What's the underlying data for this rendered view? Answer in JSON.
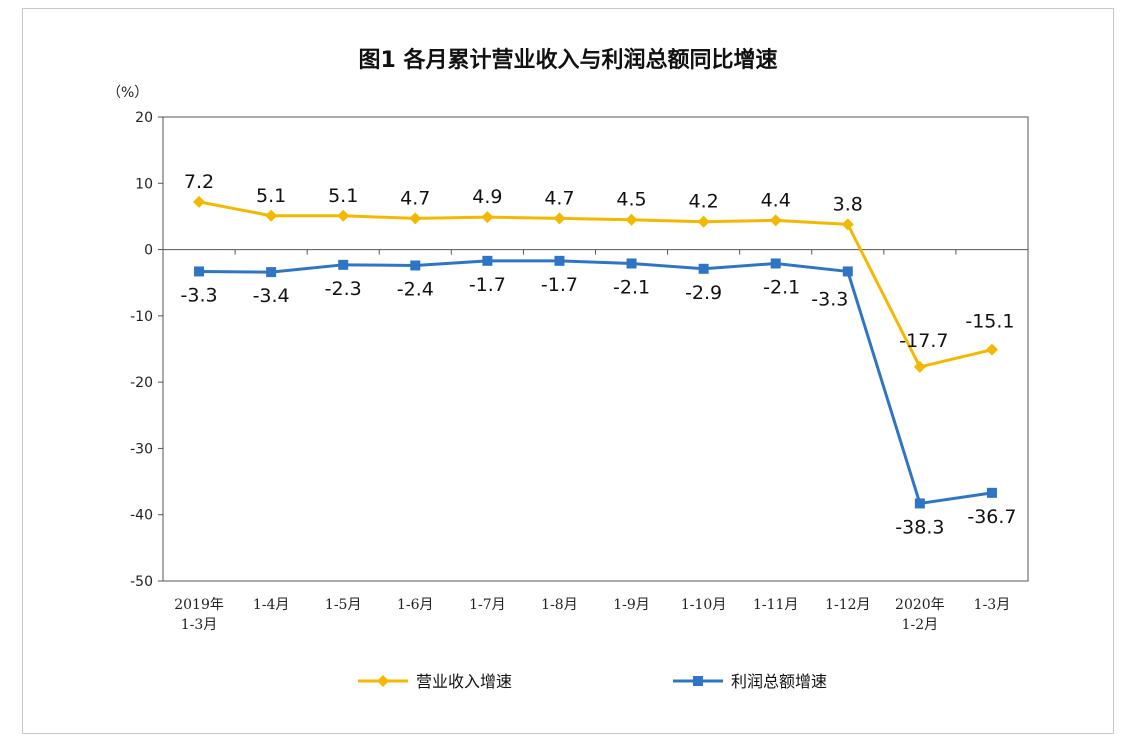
{
  "chart_data": {
    "type": "line",
    "title": "图1  各月累计营业收入与利润总额同比增速",
    "ylabel": "（%）",
    "xlabel": "",
    "ylim": [
      -50,
      20
    ],
    "yticks": [
      20,
      10,
      0,
      -10,
      -20,
      -30,
      -40,
      -50
    ],
    "categories": [
      [
        "2019年",
        "1-3月"
      ],
      [
        "1-4月"
      ],
      [
        "1-5月"
      ],
      [
        "1-6月"
      ],
      [
        "1-7月"
      ],
      [
        "1-8月"
      ],
      [
        "1-9月"
      ],
      [
        "1-10月"
      ],
      [
        "1-11月"
      ],
      [
        "1-12月"
      ],
      [
        "2020年",
        "1-2月"
      ],
      [
        "1-3月"
      ]
    ],
    "series": [
      {
        "name": "营业收入增速",
        "color": "#f5b800",
        "marker": "diamond",
        "values": [
          7.2,
          5.1,
          5.1,
          4.7,
          4.9,
          4.7,
          4.5,
          4.2,
          4.4,
          3.8,
          -17.7,
          -15.1
        ],
        "labels": [
          "7.2",
          "5.1",
          "5.1",
          "4.7",
          "4.9",
          "4.7",
          "4.5",
          "4.2",
          "4.4",
          "3.8",
          "-17.7",
          "-15.1"
        ]
      },
      {
        "name": "利润总额增速",
        "color": "#2f75c5",
        "marker": "square",
        "values": [
          -3.3,
          -3.4,
          -2.3,
          -2.4,
          -1.7,
          -1.7,
          -2.1,
          -2.9,
          -2.1,
          -3.3,
          -38.3,
          -36.7
        ],
        "labels": [
          "-3.3",
          "-3.4",
          "-2.3",
          "-2.4",
          "-1.7",
          "-1.7",
          "-2.1",
          "-2.9",
          "-2.1",
          "-3.3",
          "-38.3",
          "-36.7"
        ]
      }
    ],
    "grid": false,
    "legend_position": "bottom"
  }
}
